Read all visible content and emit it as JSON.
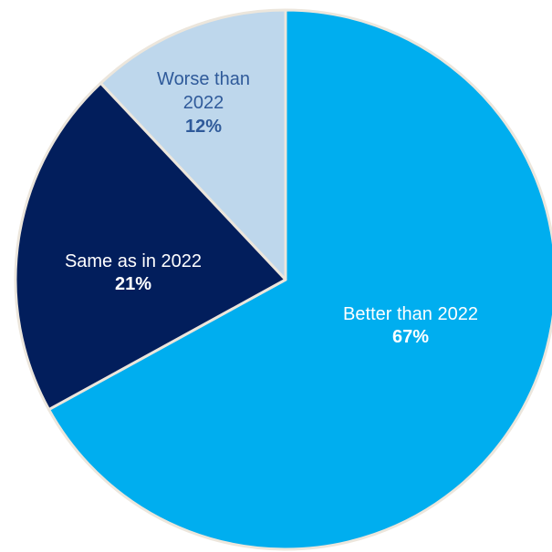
{
  "chart_data": {
    "type": "pie",
    "slices": [
      {
        "label": "Better than 2022",
        "value": 67,
        "display": "67%",
        "color": "#00aeef",
        "text_color": "#ffffff"
      },
      {
        "label": "Same as in 2022",
        "value": 21,
        "display": "21%",
        "color": "#021e5c",
        "text_color": "#ffffff"
      },
      {
        "label": "Worse than 2022",
        "value": 12,
        "display": "12%",
        "color": "#bed7ec",
        "text_color": "#2f5a9a"
      }
    ],
    "start": "12 o'clock",
    "direction": "clockwise",
    "legend": "none"
  }
}
